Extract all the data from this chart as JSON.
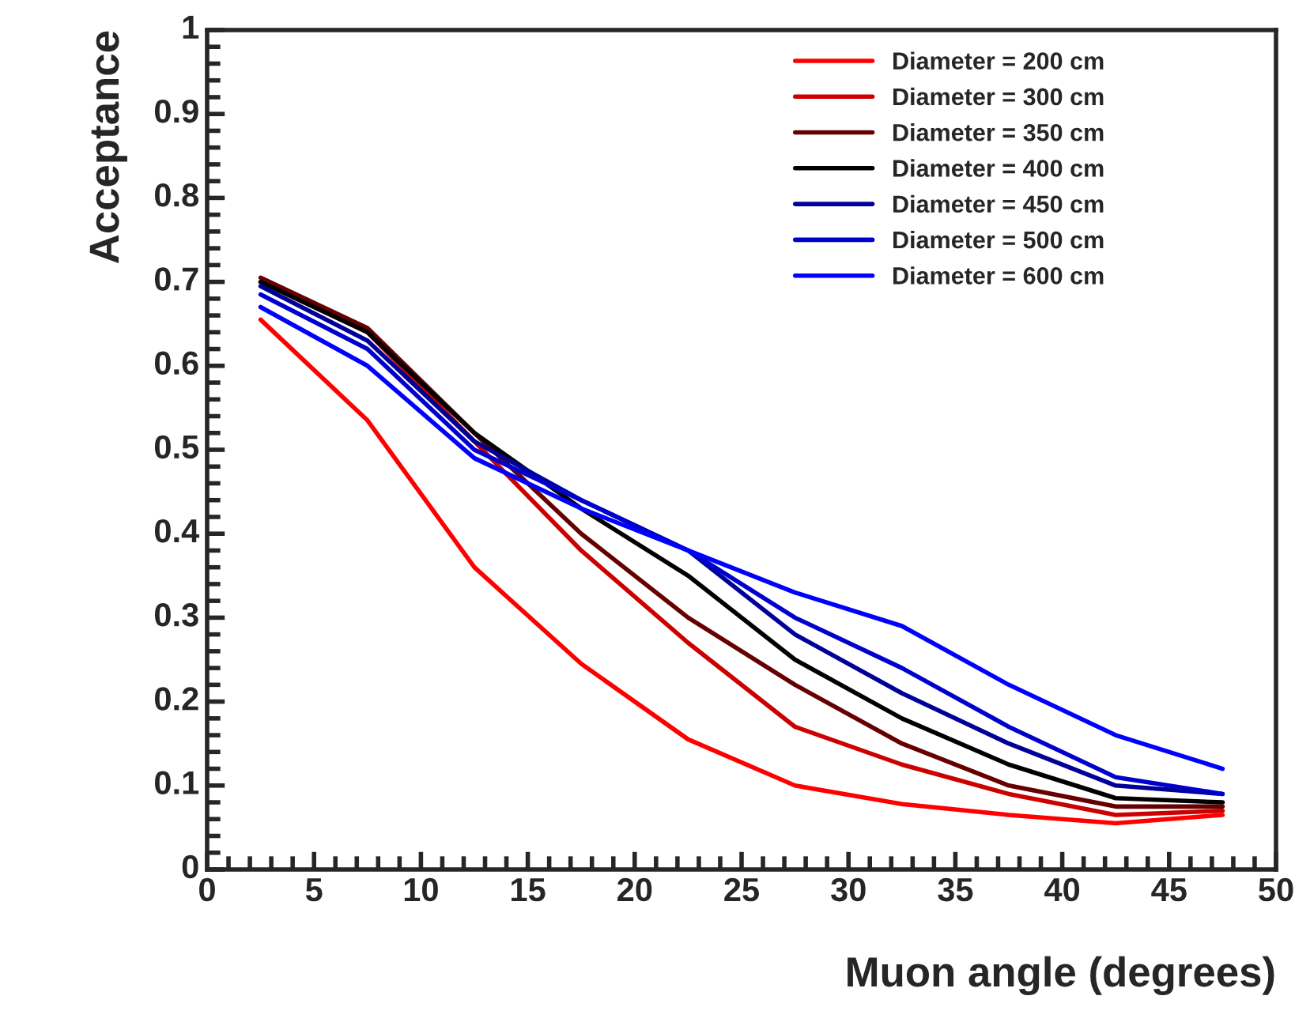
{
  "chart_data": {
    "type": "line",
    "xlabel": "Muon angle (degrees)",
    "ylabel": "Acceptance",
    "x": [
      2.5,
      7.5,
      12.5,
      17.5,
      22.5,
      27.5,
      32.5,
      37.5,
      42.5,
      47.5
    ],
    "xlim": [
      0,
      50
    ],
    "xticks": [
      0,
      5,
      10,
      15,
      20,
      25,
      30,
      35,
      40,
      45,
      50
    ],
    "ylim": [
      0,
      1
    ],
    "yticks": [
      0,
      0.1,
      0.2,
      0.3,
      0.4,
      0.5,
      0.6,
      0.7,
      0.8,
      0.9,
      1
    ],
    "grid": false,
    "legend": "top right",
    "marker": "none",
    "line_style": "solid",
    "series": [
      {
        "name": "Diameter = 200 cm",
        "color": "#ff0000",
        "values": [
          0.655,
          0.535,
          0.36,
          0.245,
          0.155,
          0.1,
          0.078,
          0.065,
          0.055,
          0.065
        ]
      },
      {
        "name": "Diameter = 300 cm",
        "color": "#cc0000",
        "values": [
          0.7,
          0.64,
          0.51,
          0.38,
          0.27,
          0.17,
          0.125,
          0.09,
          0.065,
          0.07
        ]
      },
      {
        "name": "Diameter = 350 cm",
        "color": "#660000",
        "values": [
          0.705,
          0.645,
          0.52,
          0.4,
          0.3,
          0.22,
          0.15,
          0.1,
          0.075,
          0.075
        ]
      },
      {
        "name": "Diameter = 400 cm",
        "color": "#000000",
        "values": [
          0.7,
          0.64,
          0.52,
          0.43,
          0.35,
          0.25,
          0.18,
          0.125,
          0.085,
          0.08
        ]
      },
      {
        "name": "Diameter = 450 cm",
        "color": "#000099",
        "values": [
          0.695,
          0.63,
          0.51,
          0.44,
          0.38,
          0.28,
          0.21,
          0.15,
          0.1,
          0.09
        ]
      },
      {
        "name": "Diameter = 500 cm",
        "color": "#0000cc",
        "values": [
          0.685,
          0.62,
          0.5,
          0.44,
          0.38,
          0.3,
          0.24,
          0.17,
          0.11,
          0.09
        ]
      },
      {
        "name": "Diameter = 600 cm",
        "color": "#0000ff",
        "values": [
          0.67,
          0.6,
          0.49,
          0.43,
          0.38,
          0.33,
          0.29,
          0.22,
          0.16,
          0.12
        ]
      }
    ]
  }
}
